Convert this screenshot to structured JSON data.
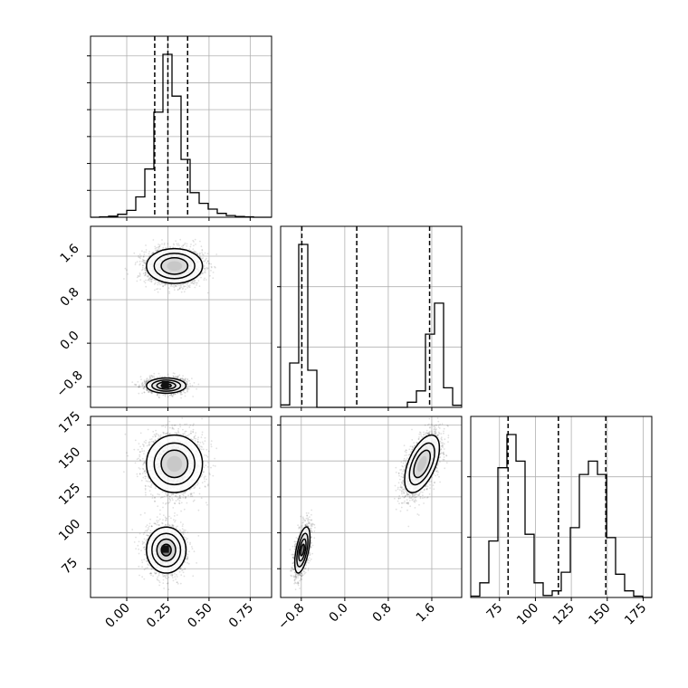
{
  "chart_data": {
    "type": "corner",
    "grid": true,
    "params": [
      "p0",
      "p1",
      "p2"
    ],
    "ranges": [
      [
        -0.22,
        0.88
      ],
      [
        -1.18,
        2.15
      ],
      [
        55,
        181
      ]
    ],
    "tick_labels": {
      "p0": [
        "0.00",
        "0.25",
        "0.50",
        "0.75"
      ],
      "p1": [
        "−0.8",
        "0.0",
        "0.8",
        "1.6"
      ],
      "p2": [
        "75",
        "100",
        "125",
        "150",
        "175"
      ]
    },
    "ticks": {
      "p0": [
        0.0,
        0.25,
        0.5,
        0.75
      ],
      "p1": [
        -0.8,
        0.0,
        0.8,
        1.6
      ],
      "p2": [
        75,
        100,
        125,
        150,
        175
      ]
    },
    "quantiles": {
      "p0": [
        0.17,
        0.25,
        0.37
      ],
      "p1": [
        -0.79,
        0.22,
        1.56
      ],
      "p2": [
        81,
        116,
        149
      ]
    },
    "histograms": {
      "p0": {
        "bin_edges": [
          -0.22,
          -0.165,
          -0.11,
          -0.055,
          0.0,
          0.055,
          0.11,
          0.165,
          0.22,
          0.275,
          0.33,
          0.385,
          0.44,
          0.495,
          0.55,
          0.605,
          0.66,
          0.715,
          0.77,
          0.825,
          0.88
        ],
        "counts": [
          0,
          2,
          5,
          14,
          32,
          95,
          225,
          490,
          760,
          565,
          270,
          115,
          65,
          38,
          18,
          8,
          4,
          2,
          0,
          0
        ]
      },
      "p1": {
        "bin_edges": [
          -1.18,
          -1.0135,
          -0.847,
          -0.6805,
          -0.514,
          -0.3475,
          -0.181,
          -0.0145,
          0.152,
          0.3185,
          0.485,
          0.6515,
          0.818,
          0.9845,
          1.151,
          1.3175,
          1.484,
          1.6505,
          1.817,
          1.9835,
          2.15
        ],
        "counts": [
          12,
          215,
          790,
          180,
          0,
          0,
          0,
          0,
          0,
          0,
          0,
          0,
          0,
          0,
          25,
          80,
          355,
          505,
          95,
          10
        ]
      },
      "p2": {
        "bin_edges": [
          55,
          61.3,
          67.6,
          73.9,
          80.2,
          86.5,
          92.8,
          99.1,
          105.4,
          111.7,
          118,
          124.3,
          130.6,
          136.9,
          143.2,
          149.5,
          155.8,
          162.1,
          168.4,
          174.7,
          181
        ],
        "counts": [
          2,
          22,
          85,
          195,
          245,
          205,
          95,
          22,
          3,
          10,
          38,
          105,
          185,
          205,
          185,
          90,
          35,
          10,
          2,
          0
        ]
      }
    },
    "clusters": [
      {
        "mean": [
          0.29,
          1.42,
          148
        ],
        "sd": [
          0.085,
          0.16,
          10
        ],
        "corr12": 0.55
      },
      {
        "mean": [
          0.24,
          -0.78,
          88
        ],
        "sd": [
          0.06,
          0.07,
          8
        ],
        "corr12": 0.55
      }
    ]
  }
}
